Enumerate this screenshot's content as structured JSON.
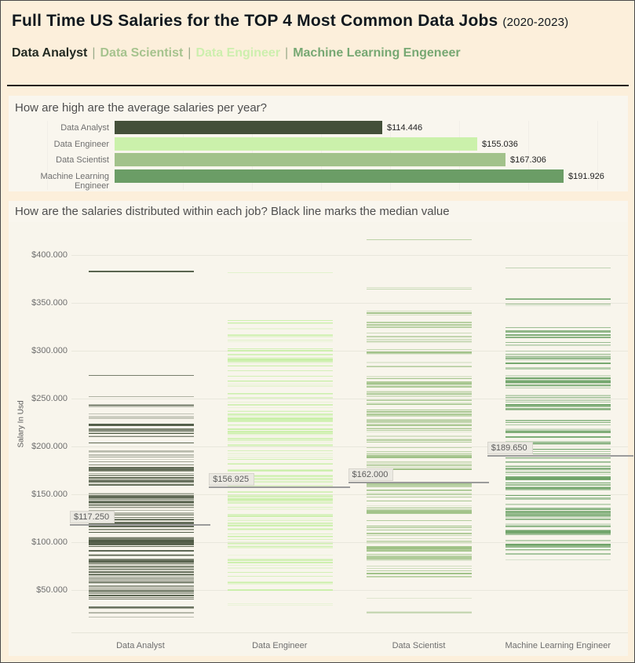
{
  "header": {
    "title": "Full Time US Salaries for the TOP 4 Most Common Data Jobs",
    "title_suffix": "(2020-2023)",
    "legend_separator": "|",
    "legend": [
      {
        "label": "Data Analyst",
        "color": "#232a22"
      },
      {
        "label": "Data Scientist",
        "color": "#a6c38e"
      },
      {
        "label": "Data Engineer",
        "color": "#cdefae"
      },
      {
        "label": "Machine Learning Engeneer",
        "color": "#77a873"
      }
    ]
  },
  "avg_chart": {
    "header": "How are high are the average salaries per year?"
  },
  "dist_chart": {
    "header": "How are the salaries distributed within each job? Black line marks the median value",
    "ylabel": "Salary In Usd"
  },
  "chart_data": [
    {
      "type": "bar",
      "title": "How are high are the average salaries per year?",
      "orientation": "horizontal",
      "categories": [
        "Data Analyst",
        "Data Engineer",
        "Data Scientist",
        "Machine Learning Engineer"
      ],
      "values": [
        114446,
        155036,
        167306,
        191926
      ],
      "value_labels": [
        "$114.446",
        "$155.036",
        "$167.306",
        "$191.926"
      ],
      "bar_colors": [
        "#44503a",
        "#cbf1ab",
        "#a2c28b",
        "#6b9d66"
      ],
      "xlim": [
        0,
        193000
      ],
      "grid": false,
      "legend_position": "none"
    },
    {
      "type": "strip",
      "title": "How are the salaries distributed within each job? Black line marks the median value",
      "ylabel": "Salary In Usd",
      "ylim": [
        15000,
        420000
      ],
      "yticks": [
        400000,
        350000,
        300000,
        250000,
        200000,
        150000,
        100000,
        50000
      ],
      "ytick_labels": [
        "$400.000",
        "$350.000",
        "$300.000",
        "$250.000",
        "$200.000",
        "$150.000",
        "$100.000",
        "$50.000"
      ],
      "grid": true,
      "series": [
        {
          "name": "Data Analyst",
          "color": "#4f5a45",
          "median": 117250,
          "median_label": "$117.250",
          "ranges": [
            {
              "from": 383000,
              "to": 387000,
              "count": 1
            },
            {
              "from": 274000,
              "to": 280000,
              "count": 1
            },
            {
              "from": 235000,
              "to": 252000,
              "count": 4
            },
            {
              "from": 190000,
              "to": 235000,
              "count": 18
            },
            {
              "from": 150000,
              "to": 190000,
              "count": 30
            },
            {
              "from": 95000,
              "to": 150000,
              "count": 70
            },
            {
              "from": 40000,
              "to": 95000,
              "count": 62
            },
            {
              "from": 18000,
              "to": 40000,
              "count": 6
            }
          ]
        },
        {
          "name": "Data Engineer",
          "color": "#c7efa5",
          "median": 156925,
          "median_label": "$156.925",
          "ranges": [
            {
              "from": 381000,
              "to": 387000,
              "count": 1
            },
            {
              "from": 325000,
              "to": 335000,
              "count": 3
            },
            {
              "from": 300000,
              "to": 325000,
              "count": 8
            },
            {
              "from": 250000,
              "to": 300000,
              "count": 20
            },
            {
              "from": 150000,
              "to": 250000,
              "count": 55
            },
            {
              "from": 60000,
              "to": 150000,
              "count": 45
            },
            {
              "from": 30000,
              "to": 60000,
              "count": 8
            }
          ]
        },
        {
          "name": "Data Scientist",
          "color": "#9dc084",
          "median": 162000,
          "median_label": "$162.000",
          "ranges": [
            {
              "from": 415000,
              "to": 419000,
              "count": 1
            },
            {
              "from": 358000,
              "to": 368000,
              "count": 2
            },
            {
              "from": 333000,
              "to": 346000,
              "count": 3
            },
            {
              "from": 300000,
              "to": 330000,
              "count": 12
            },
            {
              "from": 250000,
              "to": 300000,
              "count": 25
            },
            {
              "from": 120000,
              "to": 250000,
              "count": 70
            },
            {
              "from": 60000,
              "to": 120000,
              "count": 30
            },
            {
              "from": 25000,
              "to": 45000,
              "count": 4
            }
          ]
        },
        {
          "name": "Machine Learning Engineer",
          "color": "#6da267",
          "median": 189650,
          "median_label": "$189.650",
          "ranges": [
            {
              "from": 386000,
              "to": 393000,
              "count": 1
            },
            {
              "from": 353000,
              "to": 365000,
              "count": 2
            },
            {
              "from": 338000,
              "to": 350000,
              "count": 2
            },
            {
              "from": 300000,
              "to": 330000,
              "count": 10
            },
            {
              "from": 250000,
              "to": 300000,
              "count": 25
            },
            {
              "from": 150000,
              "to": 250000,
              "count": 65
            },
            {
              "from": 100000,
              "to": 150000,
              "count": 30
            },
            {
              "from": 78000,
              "to": 100000,
              "count": 10
            }
          ]
        }
      ]
    }
  ]
}
